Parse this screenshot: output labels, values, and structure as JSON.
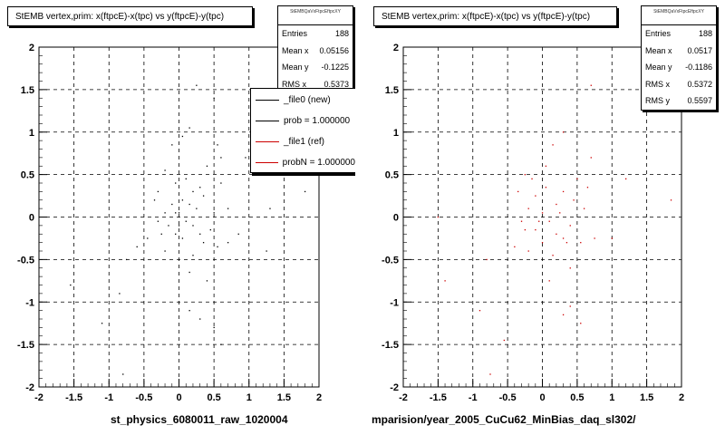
{
  "chart_data": [
    {
      "type": "scatter",
      "title": "StEMB  vertex,prim: x(ftpcE)-x(tpc) vs y(ftpcE)-y(tpc)",
      "xlabel": "st_physics_6080011_raw_1020004",
      "ylabel": "",
      "xlim": [
        -2,
        2
      ],
      "ylim": [
        -2,
        2
      ],
      "xticks": [
        "-2",
        "-1.5",
        "-1",
        "-0.5",
        "0",
        "0.5",
        "1",
        "1.5",
        "2"
      ],
      "yticks": [
        "2",
        "1.5",
        "1",
        "0.5",
        "0",
        "-0.5",
        "-1",
        "-1.5",
        "-2"
      ],
      "grid": true,
      "color": "#000000",
      "stats": {
        "header": "StEMBQaVxFtpcEftpcXY",
        "rows": [
          {
            "label": "Entries",
            "value": "188"
          },
          {
            "label": "Mean x",
            "value": "0.05156"
          },
          {
            "label": "Mean y",
            "value": "-0.1225"
          },
          {
            "label": "RMS x",
            "value": "0.5373"
          }
        ]
      },
      "legend": [
        {
          "label": "_file0 (new)",
          "color": "#000000"
        },
        {
          "label": "prob = 1.000000",
          "color": "#000000"
        },
        {
          "label": "_file1 (ref)",
          "color": "#cc0000"
        },
        {
          "label": "probN = 1.000000",
          "color": "#cc0000"
        }
      ],
      "points": [
        [
          0.25,
          1.55
        ],
        [
          0.5,
          1.4
        ],
        [
          0.15,
          1.05
        ],
        [
          0.05,
          0.95
        ],
        [
          -0.1,
          0.85
        ],
        [
          0.55,
          0.85
        ],
        [
          0.6,
          0.7
        ],
        [
          0.4,
          0.6
        ],
        [
          -0.2,
          0.55
        ],
        [
          0.1,
          0.45
        ],
        [
          -0.05,
          0.4
        ],
        [
          0.3,
          0.35
        ],
        [
          0.35,
          0.25
        ],
        [
          -0.3,
          0.3
        ],
        [
          0.05,
          0.2
        ],
        [
          -0.1,
          0.15
        ],
        [
          0.15,
          0.15
        ],
        [
          0.25,
          0.1
        ],
        [
          -0.2,
          0.05
        ],
        [
          0.0,
          0.05
        ],
        [
          0.1,
          -0.05
        ],
        [
          -0.3,
          -0.05
        ],
        [
          -0.15,
          -0.1
        ],
        [
          0.2,
          -0.1
        ],
        [
          0.45,
          -0.15
        ],
        [
          -0.05,
          -0.2
        ],
        [
          0.05,
          -0.25
        ],
        [
          0.35,
          -0.3
        ],
        [
          -0.45,
          -0.25
        ],
        [
          0.55,
          -0.35
        ],
        [
          -0.2,
          -0.4
        ],
        [
          0.2,
          -0.45
        ],
        [
          0.7,
          -0.3
        ],
        [
          -0.6,
          -0.35
        ],
        [
          0.85,
          -0.2
        ],
        [
          1.25,
          -0.4
        ],
        [
          1.3,
          0.1
        ],
        [
          1.1,
          0.5
        ],
        [
          0.95,
          0.7
        ],
        [
          1.8,
          0.3
        ],
        [
          -0.75,
          -0.5
        ],
        [
          0.15,
          -0.65
        ],
        [
          0.4,
          -0.75
        ],
        [
          -0.85,
          -0.9
        ],
        [
          0.15,
          -1.1
        ],
        [
          0.3,
          -1.2
        ],
        [
          0.5,
          -1.3
        ],
        [
          -1.55,
          -0.8
        ],
        [
          -1.1,
          -1.25
        ],
        [
          0.6,
          -1.5
        ],
        [
          -0.8,
          -1.85
        ],
        [
          0.7,
          0.1
        ],
        [
          -0.35,
          0.2
        ],
        [
          0.5,
          0.05
        ],
        [
          0.2,
          0.3
        ],
        [
          0.0,
          -0.1
        ],
        [
          -0.05,
          0.05
        ],
        [
          0.3,
          -0.2
        ],
        [
          -0.25,
          -0.2
        ],
        [
          0.6,
          0.4
        ]
      ]
    },
    {
      "type": "scatter",
      "title": "StEMB  vertex,prim: x(ftpcE)-x(tpc) vs y(ftpcE)-y(tpc)",
      "xlabel": "mparision/year_2005_CuCu62_MinBias_daq_sl302/",
      "ylabel": "",
      "xlim": [
        -2,
        2
      ],
      "ylim": [
        -2,
        2
      ],
      "xticks": [
        "-2",
        "-1.5",
        "-1",
        "-0.5",
        "0",
        "0.5",
        "1",
        "1.5",
        "2"
      ],
      "yticks": [
        "2",
        "1.5",
        "1",
        "0.5",
        "0",
        "-0.5",
        "-1",
        "-1.5",
        "-2"
      ],
      "grid": true,
      "color": "#cc0000",
      "stats": {
        "header": "StEMBQaVxFtpcEftpcXY",
        "rows": [
          {
            "label": "Entries",
            "value": "188"
          },
          {
            "label": "Mean x",
            "value": "0.0517"
          },
          {
            "label": "Mean y",
            "value": "-0.1186"
          },
          {
            "label": "RMS x",
            "value": "0.5372"
          },
          {
            "label": "RMS y",
            "value": "0.5597"
          }
        ]
      },
      "points": [
        [
          0.7,
          1.55
        ],
        [
          0.3,
          1.0
        ],
        [
          0.15,
          0.85
        ],
        [
          -0.25,
          0.5
        ],
        [
          0.5,
          0.45
        ],
        [
          0.05,
          0.35
        ],
        [
          -0.1,
          0.25
        ],
        [
          0.3,
          0.3
        ],
        [
          0.2,
          0.15
        ],
        [
          -0.2,
          0.1
        ],
        [
          0.0,
          0.05
        ],
        [
          0.1,
          -0.05
        ],
        [
          -0.3,
          -0.05
        ],
        [
          0.4,
          -0.1
        ],
        [
          -0.1,
          -0.15
        ],
        [
          0.2,
          -0.2
        ],
        [
          0.0,
          -0.3
        ],
        [
          0.35,
          -0.3
        ],
        [
          -0.4,
          -0.35
        ],
        [
          0.55,
          -0.3
        ],
        [
          0.15,
          -0.45
        ],
        [
          -0.2,
          -0.4
        ],
        [
          0.75,
          -0.25
        ],
        [
          1.0,
          -0.25
        ],
        [
          1.2,
          0.45
        ],
        [
          1.85,
          0.2
        ],
        [
          0.7,
          0.7
        ],
        [
          -0.8,
          -0.5
        ],
        [
          0.4,
          -0.6
        ],
        [
          0.1,
          -0.75
        ],
        [
          0.4,
          -1.05
        ],
        [
          0.3,
          -1.15
        ],
        [
          -0.9,
          -1.1
        ],
        [
          -1.4,
          -0.75
        ],
        [
          -0.55,
          -1.45
        ],
        [
          0.55,
          -1.25
        ],
        [
          -0.75,
          -1.85
        ],
        [
          -1.5,
          0.0
        ],
        [
          0.6,
          0.1
        ],
        [
          0.25,
          0.05
        ],
        [
          -0.35,
          0.3
        ],
        [
          0.45,
          0.2
        ],
        [
          -0.05,
          -0.05
        ],
        [
          0.3,
          -0.25
        ],
        [
          -0.25,
          -0.15
        ],
        [
          0.65,
          0.35
        ],
        [
          0.05,
          0.6
        ],
        [
          -0.15,
          0.45
        ]
      ]
    }
  ]
}
